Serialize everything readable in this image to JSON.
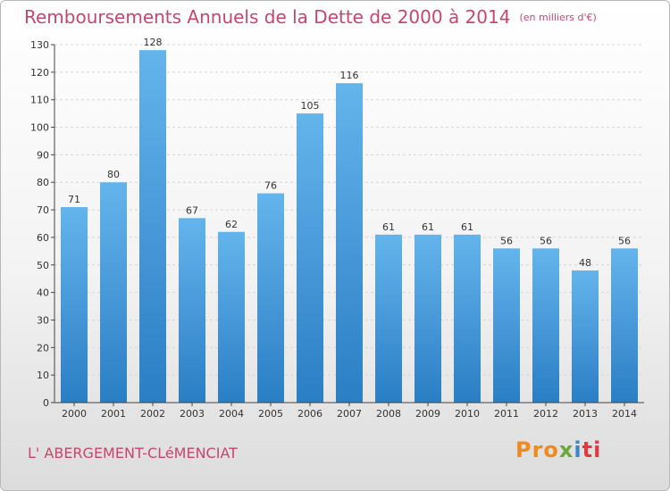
{
  "header": {
    "title": "Remboursements Annuels de la Dette de 2000 à 2014",
    "unit": "(en milliers d'€)"
  },
  "footer": {
    "commune": "L' ABERGEMENT-CLéMENCIAT",
    "logo": {
      "p1": "Pro",
      "p2": "x",
      "p3": "i",
      "p4": "ti"
    }
  },
  "colors": {
    "bar_light": "#64b4ec",
    "bar_dark": "#2a7ec4",
    "title": "#c8456e"
  },
  "chart_data": {
    "type": "bar",
    "title": "Remboursements Annuels de la Dette de 2000 à 2014",
    "categories": [
      "2000",
      "2001",
      "2002",
      "2003",
      "2004",
      "2005",
      "2006",
      "2007",
      "2008",
      "2009",
      "2010",
      "2011",
      "2012",
      "2013",
      "2014"
    ],
    "values": [
      71,
      80,
      128,
      67,
      62,
      76,
      105,
      116,
      61,
      61,
      61,
      56,
      56,
      48,
      56
    ],
    "ylim": [
      0,
      130
    ],
    "yticks": [
      0,
      10,
      20,
      30,
      40,
      50,
      60,
      70,
      80,
      90,
      100,
      110,
      120,
      130
    ],
    "grid": true,
    "data_labels": true
  }
}
